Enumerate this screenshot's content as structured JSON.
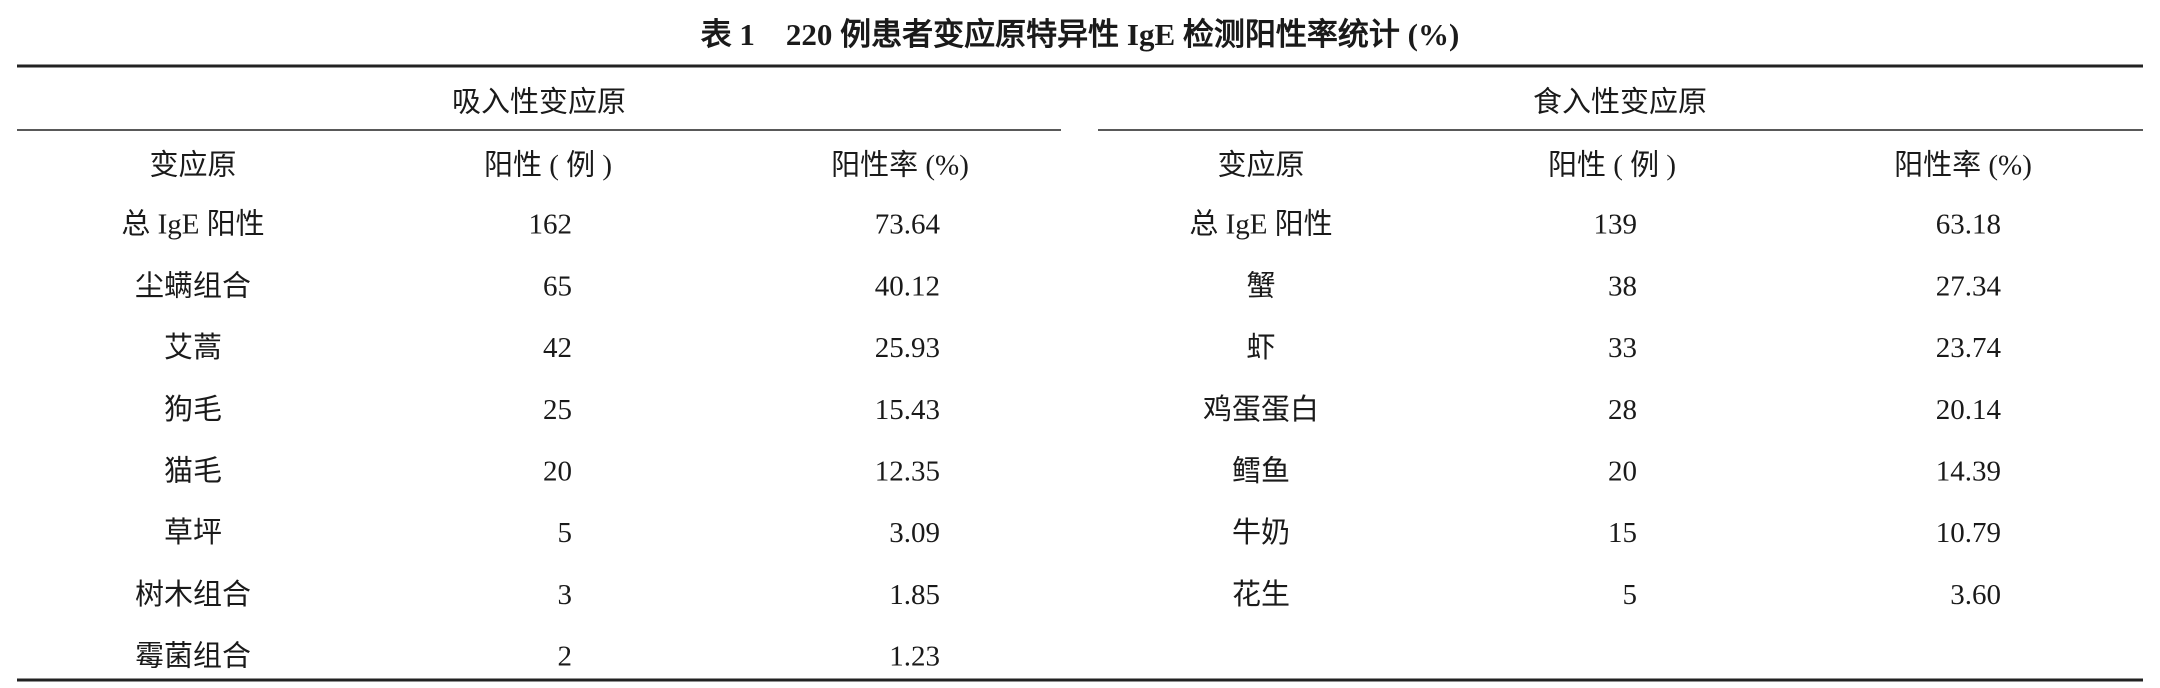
{
  "title": "表 1　220 例患者变应原特异性 IgE 检测阳性率统计 (%)",
  "groups": [
    {
      "header": "吸入性变应原",
      "columns": [
        "变应原",
        "阳性 ( 例 )",
        "阳性率 (%)"
      ],
      "rows": [
        [
          "总 IgE 阳性",
          "162",
          "73.64"
        ],
        [
          "尘螨组合",
          "65",
          "40.12"
        ],
        [
          "艾蒿",
          "42",
          "25.93"
        ],
        [
          "狗毛",
          "25",
          "15.43"
        ],
        [
          "猫毛",
          "20",
          "12.35"
        ],
        [
          "草坪",
          "5",
          "3.09"
        ],
        [
          "树木组合",
          "3",
          "1.85"
        ],
        [
          "霉菌组合",
          "2",
          "1.23"
        ]
      ]
    },
    {
      "header": "食入性变应原",
      "columns": [
        "变应原",
        "阳性 ( 例 )",
        "阳性率 (%)"
      ],
      "rows": [
        [
          "总 IgE 阳性",
          "139",
          "63.18"
        ],
        [
          "蟹",
          "38",
          "27.34"
        ],
        [
          "虾",
          "33",
          "23.74"
        ],
        [
          "鸡蛋蛋白",
          "28",
          "20.14"
        ],
        [
          "鳕鱼",
          "20",
          "14.39"
        ],
        [
          "牛奶",
          "15",
          "10.79"
        ],
        [
          "花生",
          "5",
          "3.60"
        ]
      ]
    }
  ]
}
